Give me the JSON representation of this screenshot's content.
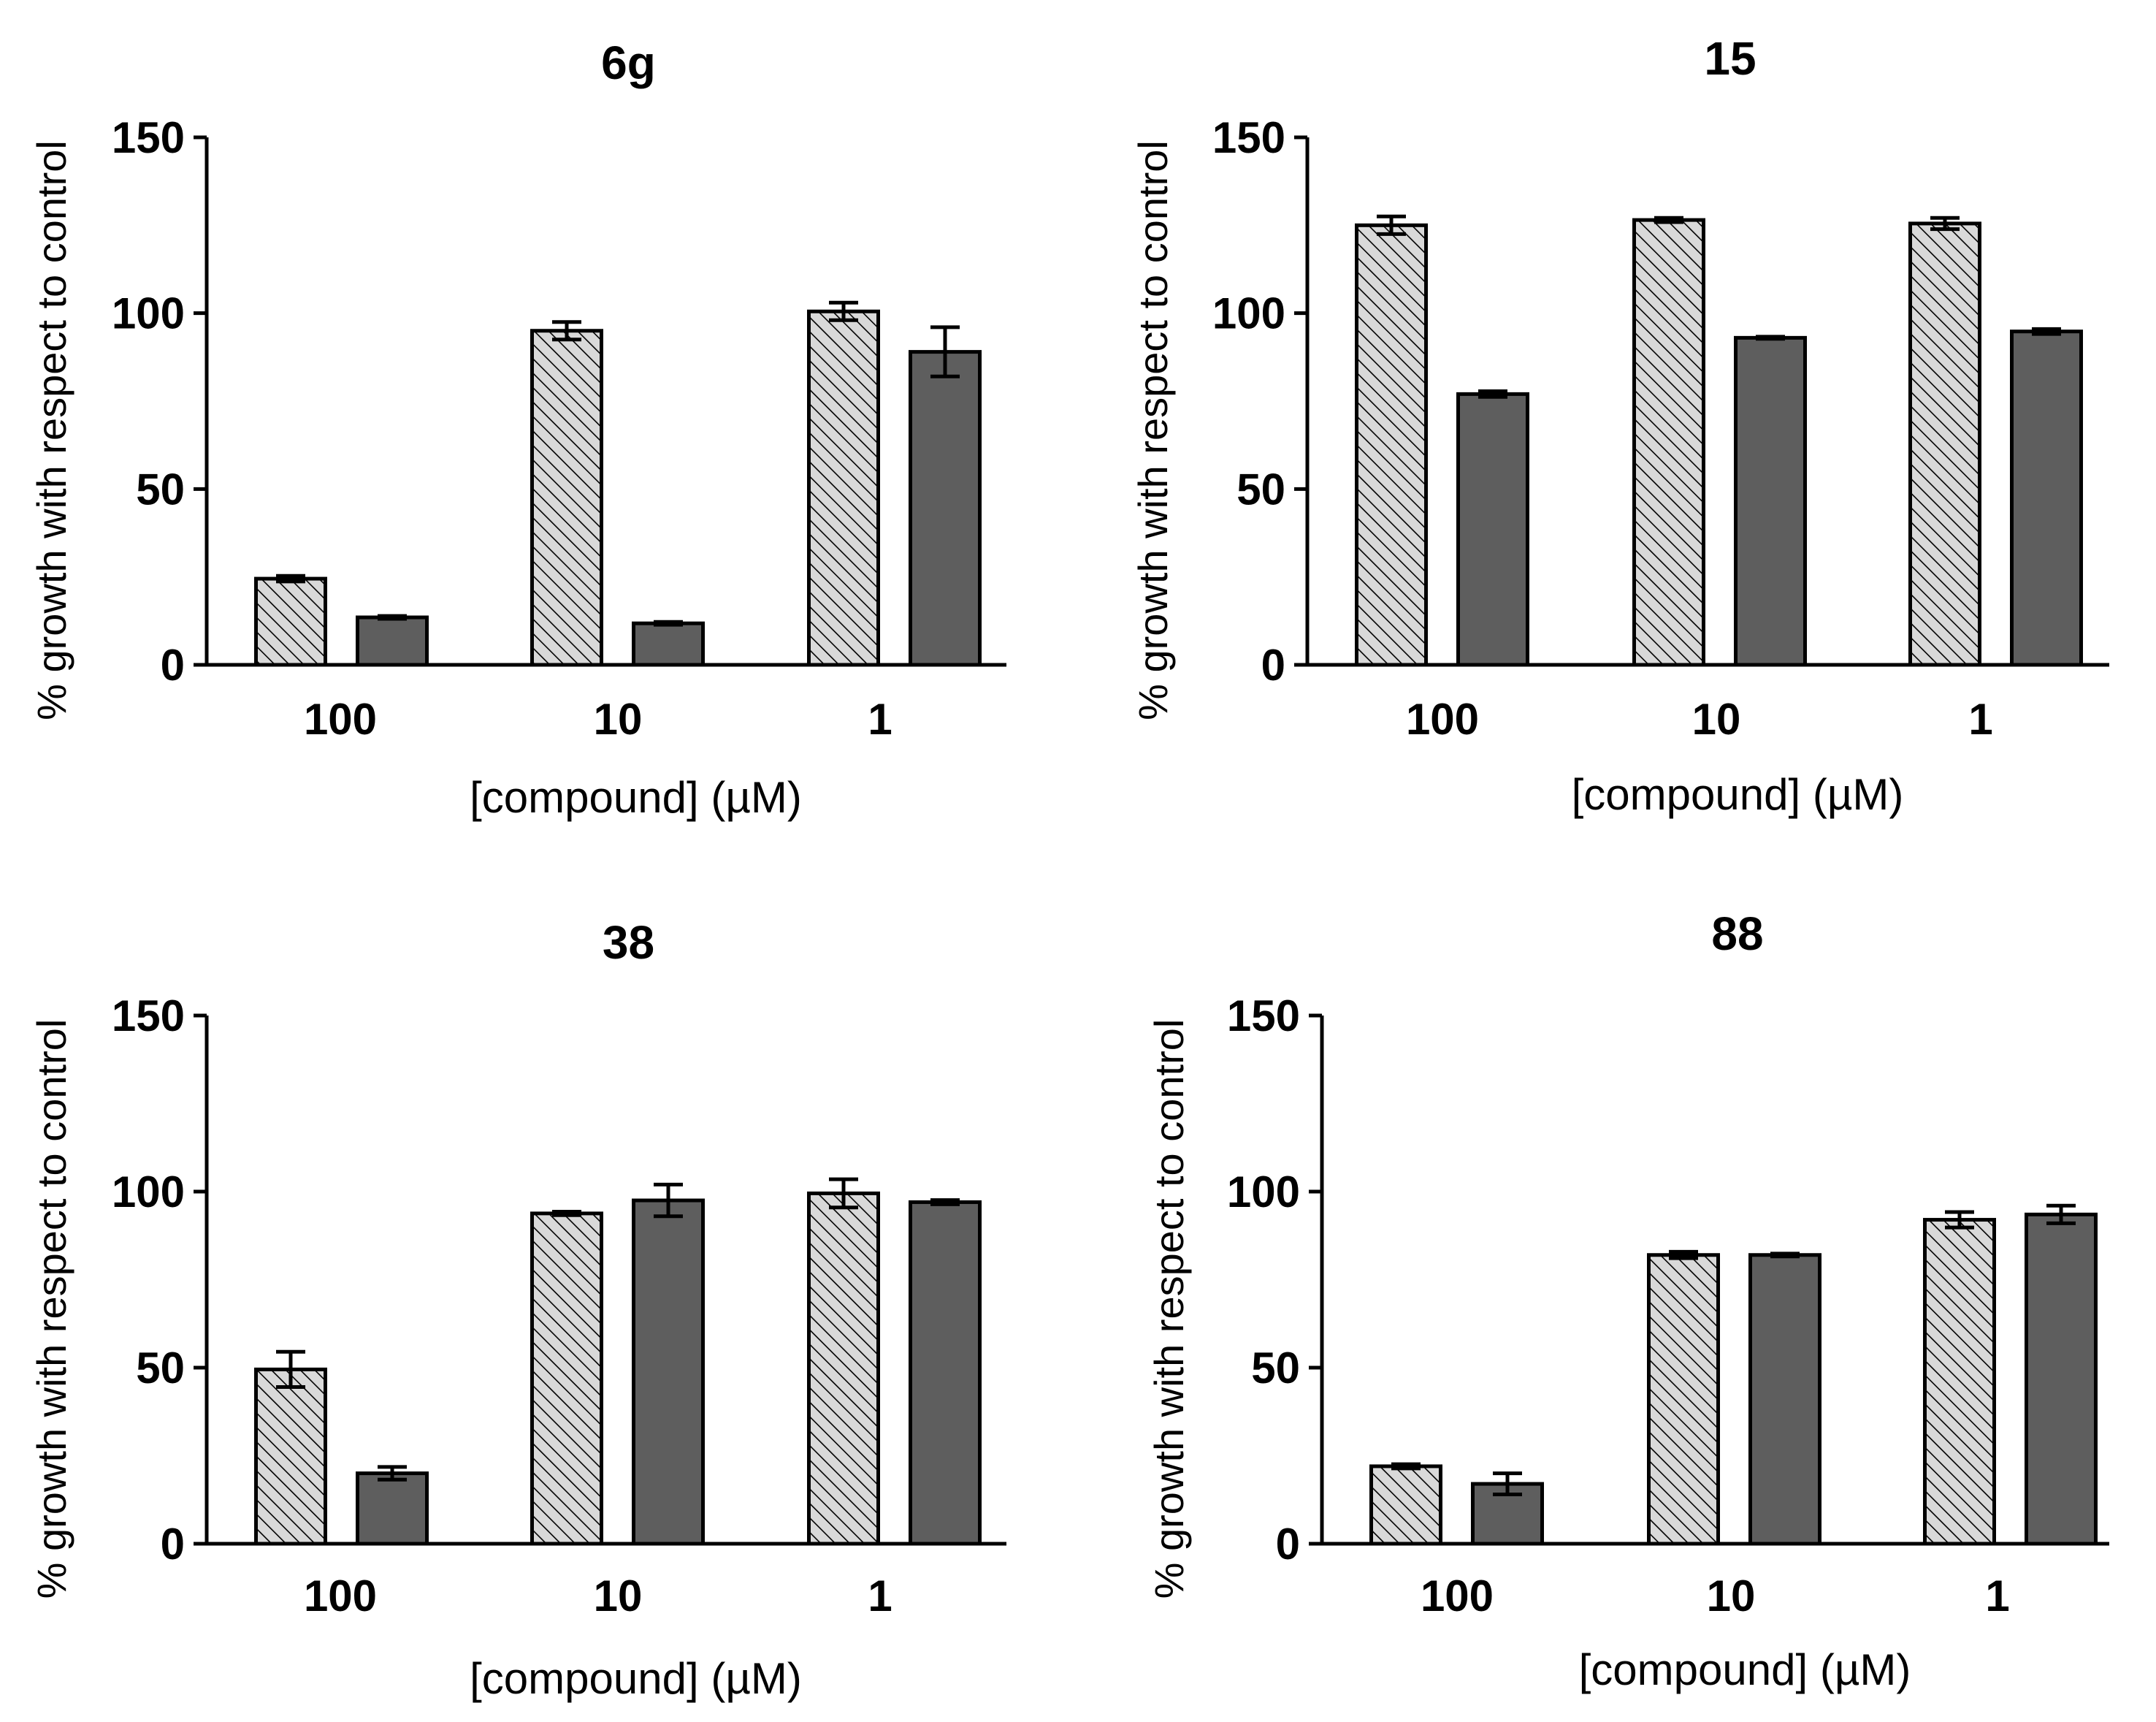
{
  "chart_data": [
    {
      "type": "bar",
      "title": "6g",
      "xlabel": "[compound] (µM)",
      "ylabel": "% growth with respect to control",
      "categories": [
        "100",
        "10",
        "1"
      ],
      "ylim": [
        0,
        150
      ],
      "yticks": [
        "0",
        "50",
        "100",
        "150"
      ],
      "series": [
        {
          "pattern": "hatched",
          "values": [
            24.5,
            95,
            100.5
          ],
          "errors": [
            0.8,
            2.5,
            2.5
          ]
        },
        {
          "pattern": "solid",
          "values": [
            13.5,
            11.8,
            89
          ],
          "errors": [
            0.4,
            0.4,
            7
          ]
        }
      ]
    },
    {
      "type": "bar",
      "title": "15",
      "xlabel": "[compound] (µM)",
      "ylabel": "% growth with respect to control",
      "categories": [
        "100",
        "10",
        "1"
      ],
      "ylim": [
        0,
        150
      ],
      "yticks": [
        "0",
        "50",
        "100",
        "150"
      ],
      "series": [
        {
          "pattern": "hatched",
          "values": [
            125,
            126.5,
            125.5
          ],
          "errors": [
            2.5,
            0.6,
            1.6
          ]
        },
        {
          "pattern": "solid",
          "values": [
            77,
            93,
            94.8
          ],
          "errors": [
            0.8,
            0.3,
            0.7
          ]
        }
      ]
    },
    {
      "type": "bar",
      "title": "38",
      "xlabel": "[compound] (µM)",
      "ylabel": "% growth with respect to control",
      "categories": [
        "100",
        "10",
        "1"
      ],
      "ylim": [
        0,
        150
      ],
      "yticks": [
        "0",
        "50",
        "100",
        "150"
      ],
      "series": [
        {
          "pattern": "hatched",
          "values": [
            49.5,
            93.8,
            99.5
          ],
          "errors": [
            5,
            0.5,
            4
          ]
        },
        {
          "pattern": "solid",
          "values": [
            20,
            97.5,
            97
          ],
          "errors": [
            1.8,
            4.5,
            0.6
          ]
        }
      ]
    },
    {
      "type": "bar",
      "title": "88",
      "xlabel": "[compound] (µM)",
      "ylabel": "% growth with respect to control",
      "categories": [
        "100",
        "10",
        "1"
      ],
      "ylim": [
        0,
        150
      ],
      "yticks": [
        "0",
        "50",
        "100",
        "150"
      ],
      "series": [
        {
          "pattern": "hatched",
          "values": [
            22,
            82,
            92
          ],
          "errors": [
            0.6,
            0.9,
            2.2
          ]
        },
        {
          "pattern": "solid",
          "values": [
            17,
            82,
            93.5
          ],
          "errors": [
            3,
            0.4,
            2.5
          ]
        }
      ]
    }
  ],
  "colors": {
    "hatched_fill": "#d9d9d9",
    "solid_fill": "#5e5e5e",
    "stroke": "#000000"
  }
}
